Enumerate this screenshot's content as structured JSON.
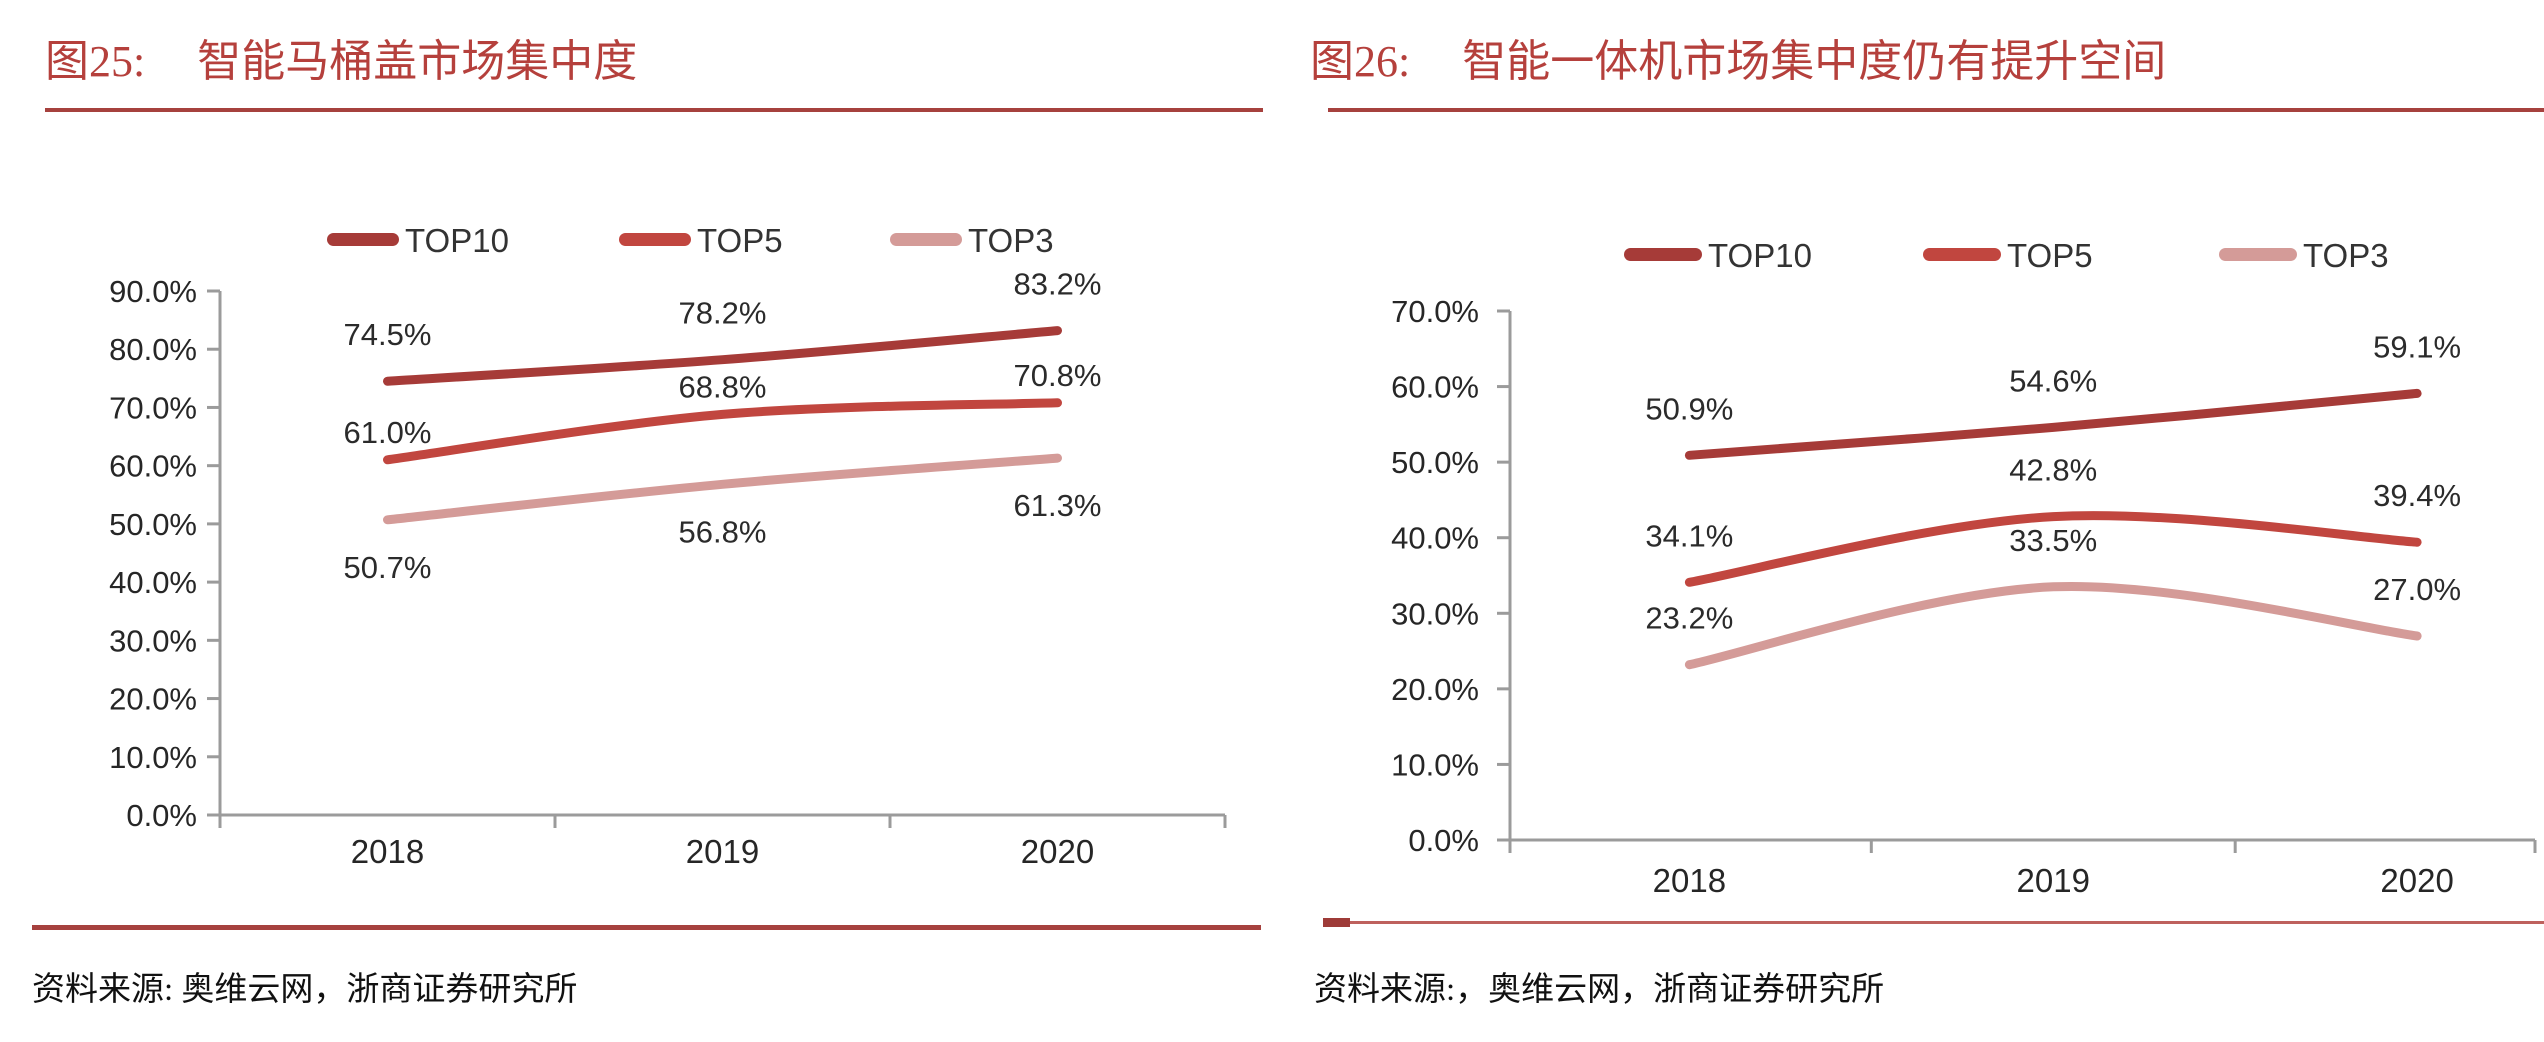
{
  "theme": {
    "title_red": "#B5403C",
    "rule_red": "#A6413E",
    "rule_red_light": "#BE615D",
    "axis_gray": "#9B9B9B",
    "label_dark": "#262626",
    "legend_text": "#333333"
  },
  "chart_data": [
    {
      "type": "line",
      "fig_label": "图25:",
      "title": "智能马桶盖市场集中度",
      "categories": [
        "2018",
        "2019",
        "2020"
      ],
      "series": [
        {
          "name": "TOP10",
          "color": "#A63B38",
          "values": [
            74.5,
            78.2,
            83.2
          ],
          "label_side": "above"
        },
        {
          "name": "TOP5",
          "color": "#C1463F",
          "values": [
            61.0,
            68.8,
            70.8
          ],
          "label_side": "above"
        },
        {
          "name": "TOP3",
          "color": "#D49B98",
          "values": [
            50.7,
            56.8,
            61.3
          ],
          "label_side": "below"
        }
      ],
      "ylim": [
        0,
        90
      ],
      "ytick_step": 10,
      "ytick_labels": [
        "0.0%",
        "10.0%",
        "20.0%",
        "30.0%",
        "40.0%",
        "50.0%",
        "60.0%",
        "70.0%",
        "80.0%",
        "90.0%"
      ],
      "grid": false,
      "smoothed": true,
      "legend_position": "top",
      "source": "资料来源: 奥维云网，浙商证券研究所"
    },
    {
      "type": "line",
      "fig_label": "图26:",
      "title": "智能一体机市场集中度仍有提升空间",
      "categories": [
        "2018",
        "2019",
        "2020"
      ],
      "series": [
        {
          "name": "TOP10",
          "color": "#A63B38",
          "values": [
            50.9,
            54.6,
            59.1
          ],
          "label_side": "above"
        },
        {
          "name": "TOP5",
          "color": "#C1463F",
          "values": [
            34.1,
            42.8,
            39.4
          ],
          "label_side": "above"
        },
        {
          "name": "TOP3",
          "color": "#D49B98",
          "values": [
            23.2,
            33.5,
            27.0
          ],
          "label_side": "above"
        }
      ],
      "ylim": [
        0,
        70
      ],
      "ytick_step": 10,
      "ytick_labels": [
        "0.0%",
        "10.0%",
        "20.0%",
        "30.0%",
        "40.0%",
        "50.0%",
        "60.0%",
        "70.0%"
      ],
      "grid": false,
      "smoothed": true,
      "legend_position": "top",
      "source": "资料来源:，奥维云网，浙商证券研究所"
    }
  ]
}
